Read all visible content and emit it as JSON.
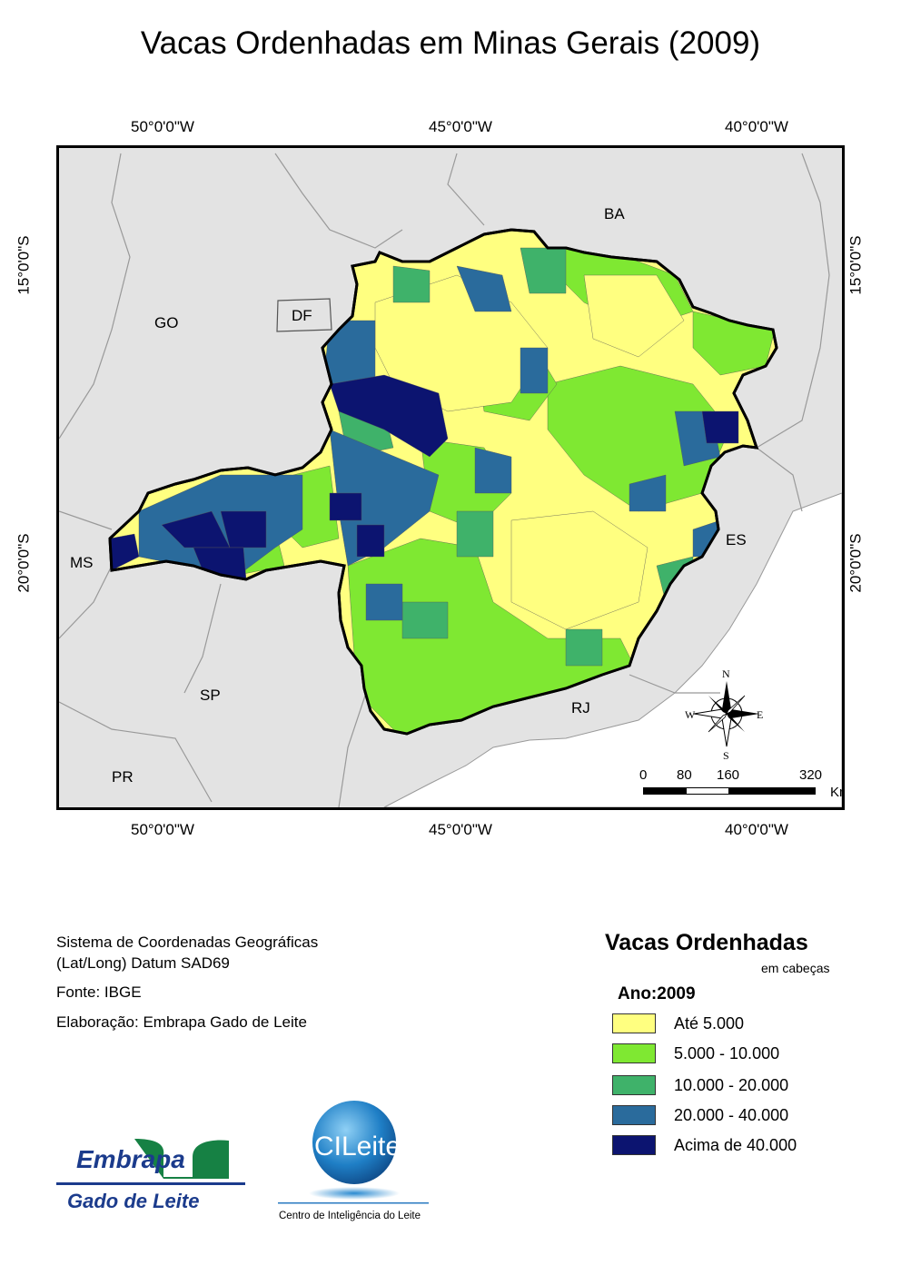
{
  "title": "Vacas Ordenhadas em Minas Gerais (2009)",
  "coords": {
    "top": [
      "50°0'0\"W",
      "45°0'0\"W",
      "40°0'0\"W"
    ],
    "bottom": [
      "50°0'0\"W",
      "45°0'0\"W",
      "40°0'0\"W"
    ],
    "left": [
      "15°0'0\"S",
      "20°0'0\"S"
    ],
    "right": [
      "15°0'0\"S",
      "20°0'0\"S"
    ]
  },
  "states": [
    "BA",
    "GO",
    "DF",
    "MS",
    "ES",
    "SP",
    "RJ",
    "PR"
  ],
  "compass": {
    "n": "N",
    "s": "S",
    "e": "E",
    "w": "W"
  },
  "scalebar": {
    "ticks": [
      "0",
      "80",
      "160",
      "320"
    ],
    "unit": "Km"
  },
  "info": {
    "line1": "Sistema de Coordenadas Geográficas",
    "line2": "(Lat/Long) Datum SAD69",
    "source": "Fonte: IBGE",
    "author": "Elaboração: Embrapa Gado de Leite"
  },
  "legend": {
    "title": "Vacas Ordenhadas",
    "subtitle": "em cabeças",
    "year": "Ano:2009",
    "classes": [
      {
        "label": "Até 5.000",
        "color": "#ffff80"
      },
      {
        "label": "5.000 - 10.000",
        "color": "#7fe832"
      },
      {
        "label": "10.000 - 20.000",
        "color": "#3fb26a"
      },
      {
        "label": "20.000 - 40.000",
        "color": "#2a6b9c"
      },
      {
        "label": "Acima de 40.000",
        "color": "#0c1470"
      }
    ]
  },
  "logos": {
    "embrapa_name": "Embrapa",
    "embrapa_unit": "Gado de Leite",
    "cileite_name": "CILeite",
    "cileite_caption": "Centro de Inteligência do Leite"
  },
  "colors": {
    "background": "#e3e3e3",
    "border": "#000000",
    "ocean": "#ffffff"
  }
}
